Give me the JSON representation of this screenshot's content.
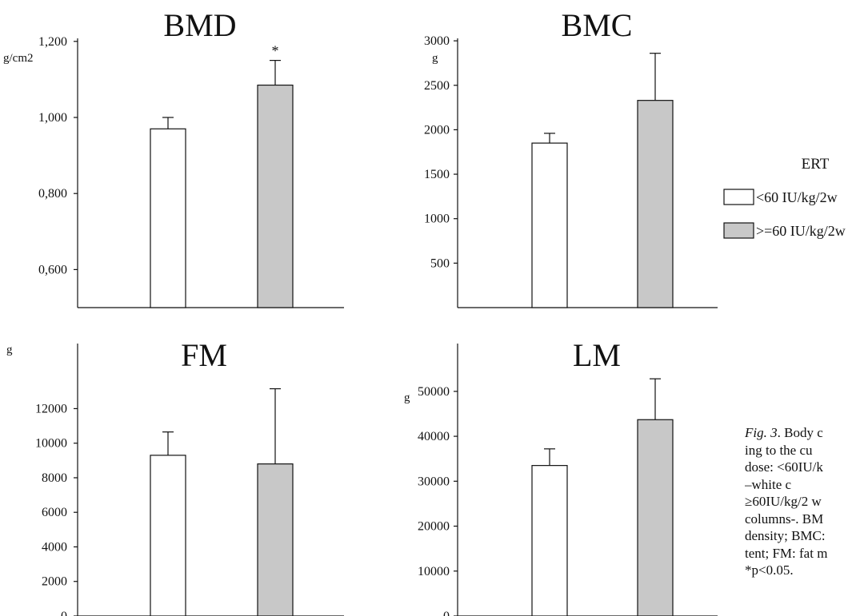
{
  "chart_data": [
    {
      "id": "bmd",
      "type": "bar",
      "title": "BMD",
      "ylabel": "g/cm2",
      "ylim": [
        0.5,
        1.2
      ],
      "yticks": [
        0.6,
        0.8,
        1.0,
        1.2
      ],
      "ytick_labels": [
        "0,600",
        "0,800",
        "1,000",
        "1,200"
      ],
      "categories": [
        "<60 IU/kg/2w",
        ">=60 IU/kg/2w"
      ],
      "values": [
        0.97,
        1.085
      ],
      "errors": [
        0.03,
        0.065
      ],
      "annotations": [
        "",
        "*"
      ]
    },
    {
      "id": "bmc",
      "type": "bar",
      "title": "BMC",
      "ylabel": "g",
      "ylim": [
        0,
        3000
      ],
      "yticks": [
        500,
        1000,
        1500,
        2000,
        2500,
        3000
      ],
      "ytick_labels": [
        "500",
        "1000",
        "1500",
        "2000",
        "2500",
        "3000"
      ],
      "categories": [
        "<60 IU/kg/2w",
        ">=60 IU/kg/2w"
      ],
      "values": [
        1850,
        2330
      ],
      "errors": [
        110,
        530
      ],
      "annotations": [
        "",
        ""
      ]
    },
    {
      "id": "fm",
      "type": "bar",
      "title": "FM",
      "ylabel": "g",
      "ylim": [
        0,
        14000
      ],
      "yticks": [
        0,
        2000,
        4000,
        6000,
        8000,
        10000,
        12000
      ],
      "ytick_labels": [
        "0",
        "2000",
        "4000",
        "6000",
        "8000",
        "10000",
        "12000"
      ],
      "categories": [
        "<60 IU/kg/2w",
        ">=60 IU/kg/2w"
      ],
      "values": [
        9300,
        8800
      ],
      "errors": [
        1350,
        4350
      ],
      "annotations": [
        "",
        ""
      ]
    },
    {
      "id": "lm",
      "type": "bar",
      "title": "LM",
      "ylabel": "g",
      "ylim": [
        0,
        56000
      ],
      "yticks": [
        0,
        10000,
        20000,
        30000,
        40000,
        50000
      ],
      "ytick_labels": [
        "0",
        "10000",
        "20000",
        "30000",
        "40000",
        "50000"
      ],
      "categories": [
        "<60 IU/kg/2w",
        ">=60 IU/kg/2w"
      ],
      "values": [
        33500,
        43700
      ],
      "errors": [
        3700,
        9100
      ],
      "annotations": [
        "",
        ""
      ]
    }
  ],
  "legend": {
    "title": "ERT",
    "items": [
      {
        "label": "<60 IU/kg/2w",
        "color": "#ffffff"
      },
      {
        "label": ">=60 IU/kg/2w",
        "color": "#c8c8c8"
      }
    ]
  },
  "caption": {
    "fig_label": "Fig. 3",
    "lines": [
      ". Body c",
      "ing to the cu",
      "dose: <60IU/k",
      "–white        c",
      "≥60IU/kg/2 w",
      "columns-. BM",
      "density; BMC:",
      "tent; FM: fat m",
      "*p<0.05."
    ]
  }
}
